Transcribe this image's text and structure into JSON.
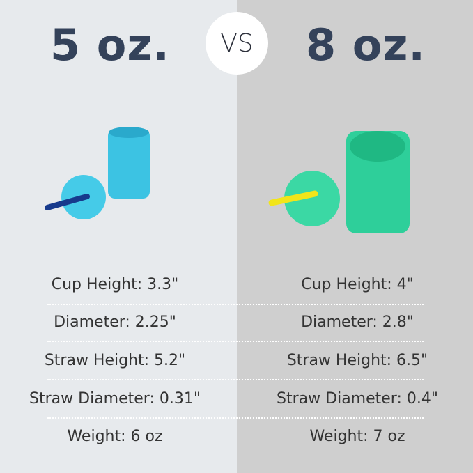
{
  "left": {
    "title": "5 oz.",
    "cup_color": "#3cc3e3",
    "straw_color": "#173a8c",
    "specs": [
      "Cup Height: 3.3\"",
      "Diameter: 2.25\"",
      "Straw Height: 5.2\"",
      "Straw Diameter: 0.31\"",
      "Weight: 6 oz"
    ]
  },
  "vs_label": "VS",
  "right": {
    "title": "8 oz.",
    "cup_color": "#2ecf9a",
    "straw_color": "#f2e51a",
    "specs": [
      "Cup Height: 4\"",
      "Diameter: 2.8\"",
      "Straw Height: 6.5\"",
      "Straw Diameter: 0.4\"",
      "Weight: 7 oz"
    ]
  }
}
